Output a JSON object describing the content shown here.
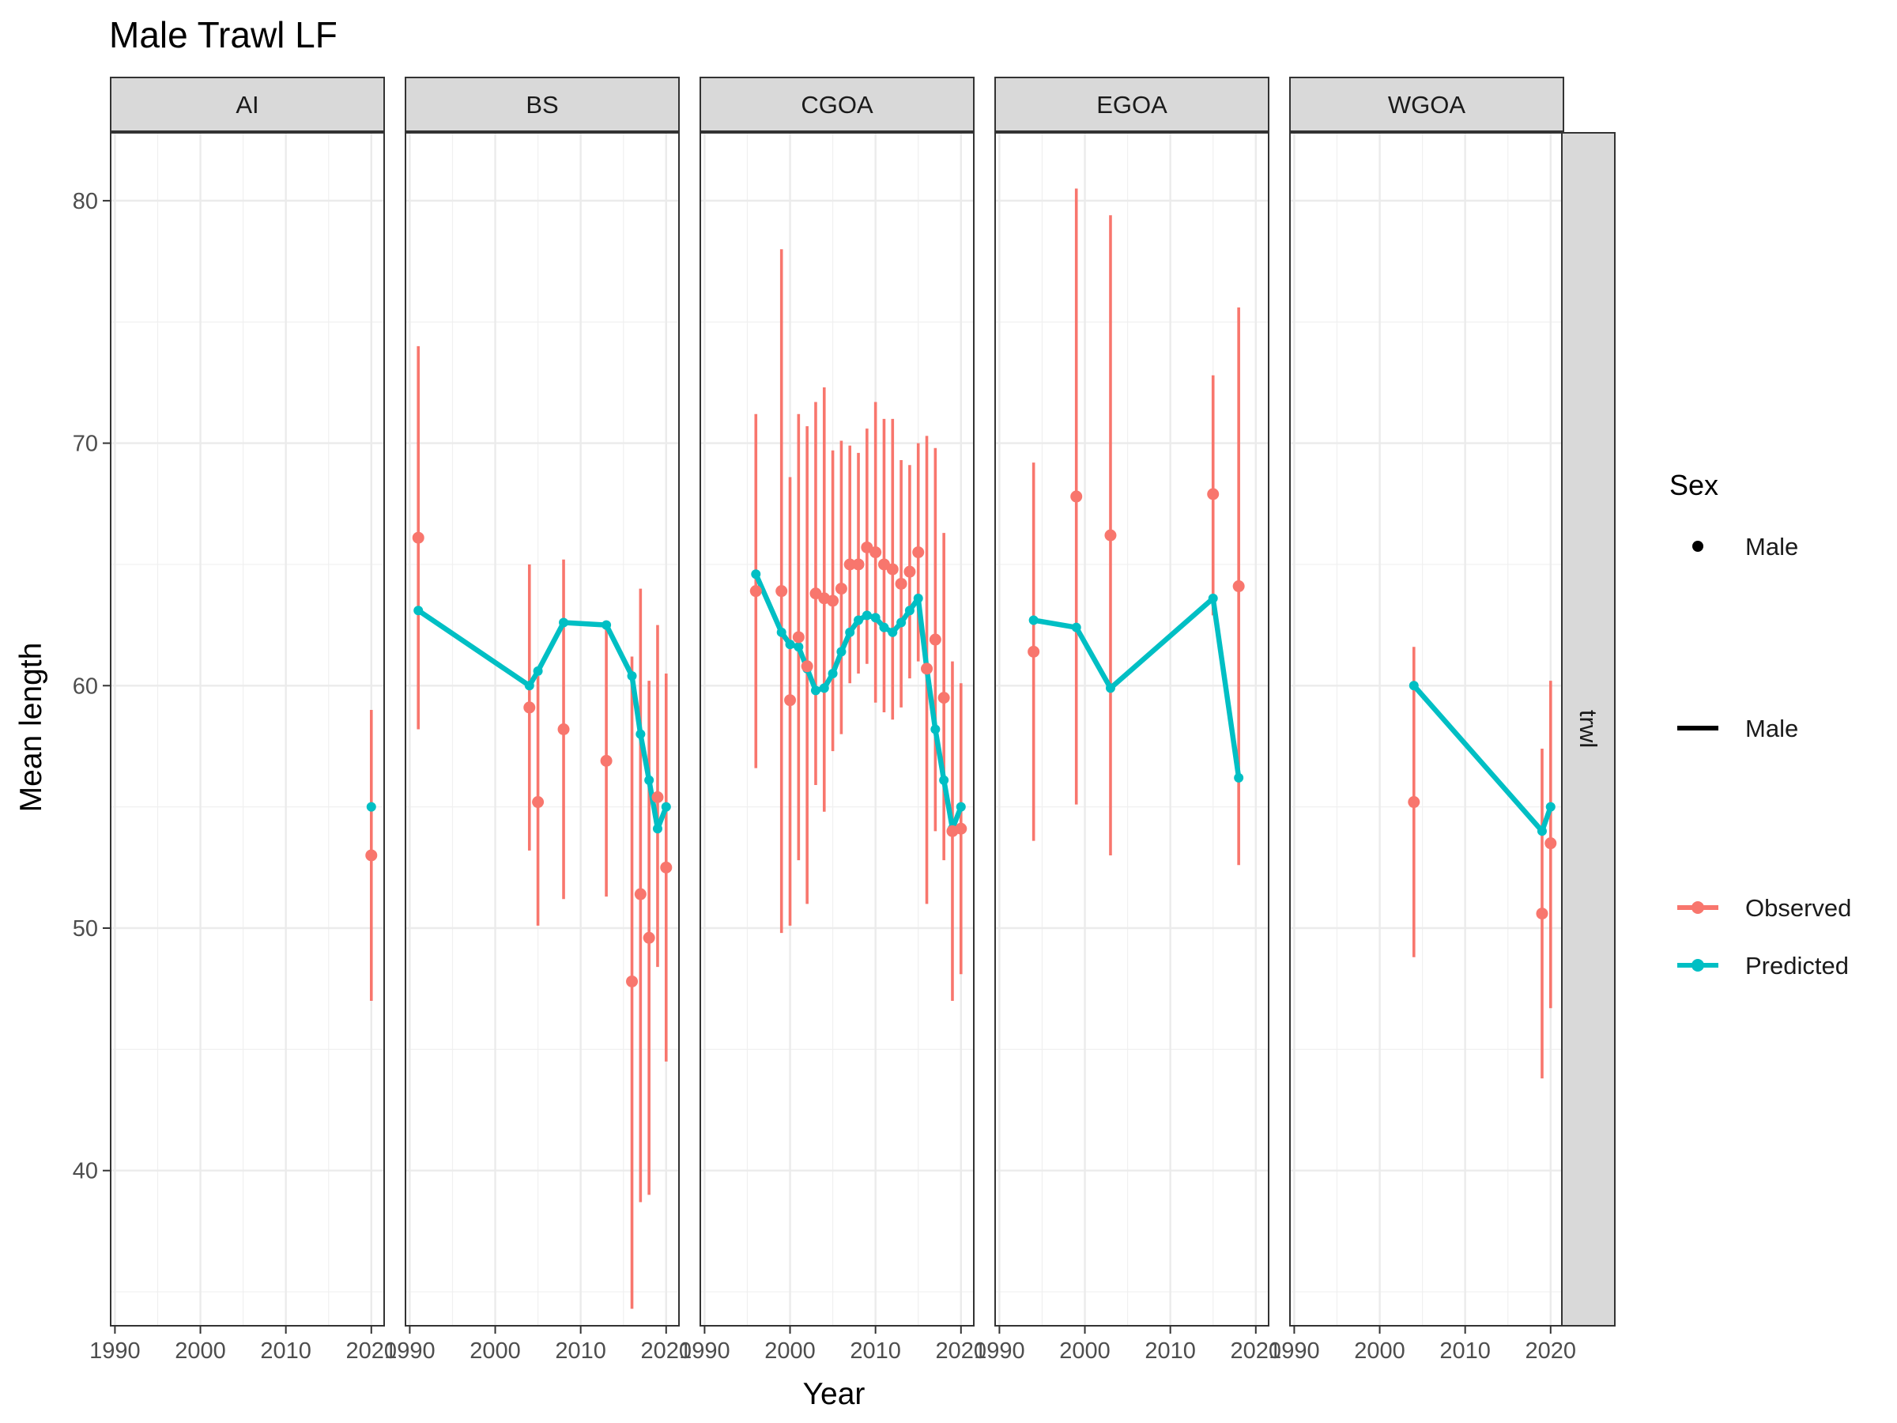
{
  "chart_data": {
    "type": "line",
    "title": "Male Trawl LF",
    "xlabel": "Year",
    "ylabel": "Mean length",
    "xlim": [
      1989.5,
      2021.5
    ],
    "ylim": [
      33.6,
      82.8
    ],
    "xticks": [
      1990,
      2000,
      2010,
      2020
    ],
    "xtick_labels": [
      "1990",
      "2000",
      "2010",
      "2020"
    ],
    "yticks": [
      40,
      50,
      60,
      70,
      80
    ],
    "ytick_labels": [
      "40",
      "50",
      "60",
      "70",
      "80"
    ],
    "grid": true,
    "row_strip": "trwl",
    "colors": {
      "observed": "#F8766D",
      "predicted": "#00BFC4"
    },
    "legend": {
      "placement": "right",
      "title": "Sex",
      "shape_label": "Male",
      "linetype_label": "Male",
      "observed_label": "Observed",
      "predicted_label": "Predicted"
    },
    "panels": [
      {
        "name": "AI",
        "observed": [
          [
            2020,
            53.0,
            47.0,
            59.0
          ]
        ],
        "predicted": [
          [
            2020,
            55.0
          ]
        ]
      },
      {
        "name": "BS",
        "observed": [
          [
            1991,
            66.1,
            58.2,
            74.0
          ],
          [
            2004,
            59.1,
            53.2,
            65.0
          ],
          [
            2005,
            55.2,
            50.1,
            60.4
          ],
          [
            2008,
            58.2,
            51.2,
            65.2
          ],
          [
            2013,
            56.9,
            51.3,
            62.4
          ],
          [
            2016,
            47.8,
            34.3,
            61.2
          ],
          [
            2017,
            51.4,
            38.7,
            64.0
          ],
          [
            2018,
            49.6,
            39.0,
            60.2
          ],
          [
            2019,
            55.4,
            48.4,
            62.5
          ],
          [
            2020,
            52.5,
            44.5,
            60.5
          ]
        ],
        "predicted": [
          [
            1991,
            63.1
          ],
          [
            2004,
            60.0
          ],
          [
            2005,
            60.6
          ],
          [
            2008,
            62.6
          ],
          [
            2013,
            62.5
          ],
          [
            2016,
            60.4
          ],
          [
            2017,
            58.0
          ],
          [
            2018,
            56.1
          ],
          [
            2019,
            54.1
          ],
          [
            2020,
            55.0
          ]
        ]
      },
      {
        "name": "CGOA",
        "observed": [
          [
            1996,
            63.9,
            56.6,
            71.2
          ],
          [
            1999,
            63.9,
            49.8,
            78.0
          ],
          [
            2000,
            59.4,
            50.1,
            68.6
          ],
          [
            2001,
            62.0,
            52.8,
            71.2
          ],
          [
            2002,
            60.8,
            51.0,
            70.7
          ],
          [
            2003,
            63.8,
            55.9,
            71.7
          ],
          [
            2004,
            63.6,
            54.8,
            72.3
          ],
          [
            2005,
            63.5,
            57.3,
            69.7
          ],
          [
            2006,
            64.0,
            58.0,
            70.1
          ],
          [
            2007,
            65.0,
            60.1,
            69.9
          ],
          [
            2008,
            65.0,
            60.5,
            69.6
          ],
          [
            2009,
            65.7,
            60.9,
            70.6
          ],
          [
            2010,
            65.5,
            59.3,
            71.7
          ],
          [
            2011,
            65.0,
            58.9,
            71.0
          ],
          [
            2012,
            64.8,
            58.6,
            71.0
          ],
          [
            2013,
            64.2,
            59.1,
            69.3
          ],
          [
            2014,
            64.7,
            60.3,
            69.1
          ],
          [
            2015,
            65.5,
            61.0,
            70.0
          ],
          [
            2016,
            60.7,
            51.0,
            70.3
          ],
          [
            2017,
            61.9,
            54.0,
            69.8
          ],
          [
            2018,
            59.5,
            52.8,
            66.3
          ],
          [
            2019,
            54.0,
            47.0,
            61.0
          ],
          [
            2020,
            54.1,
            48.1,
            60.1
          ]
        ],
        "predicted": [
          [
            1996,
            64.6
          ],
          [
            1999,
            62.2
          ],
          [
            2000,
            61.7
          ],
          [
            2001,
            61.6
          ],
          [
            2002,
            60.7
          ],
          [
            2003,
            59.8
          ],
          [
            2004,
            59.9
          ],
          [
            2005,
            60.5
          ],
          [
            2006,
            61.4
          ],
          [
            2007,
            62.2
          ],
          [
            2008,
            62.7
          ],
          [
            2009,
            62.9
          ],
          [
            2010,
            62.8
          ],
          [
            2011,
            62.4
          ],
          [
            2012,
            62.2
          ],
          [
            2013,
            62.6
          ],
          [
            2014,
            63.1
          ],
          [
            2015,
            63.6
          ],
          [
            2016,
            60.7
          ],
          [
            2017,
            58.2
          ],
          [
            2018,
            56.1
          ],
          [
            2019,
            54.1
          ],
          [
            2020,
            55.0
          ]
        ]
      },
      {
        "name": "EGOA",
        "observed": [
          [
            1994,
            61.4,
            53.6,
            69.2
          ],
          [
            1999,
            67.8,
            55.1,
            80.5
          ],
          [
            2003,
            66.2,
            53.0,
            79.4
          ],
          [
            2015,
            67.9,
            62.9,
            72.8
          ],
          [
            2018,
            64.1,
            52.6,
            75.6
          ]
        ],
        "predicted": [
          [
            1994,
            62.7
          ],
          [
            1999,
            62.4
          ],
          [
            2003,
            59.9
          ],
          [
            2015,
            63.6
          ],
          [
            2018,
            56.2
          ]
        ]
      },
      {
        "name": "WGOA",
        "observed": [
          [
            2004,
            55.2,
            48.8,
            61.6
          ],
          [
            2019,
            50.6,
            43.8,
            57.4
          ],
          [
            2020,
            53.5,
            46.7,
            60.2
          ]
        ],
        "predicted": [
          [
            2004,
            60.0
          ],
          [
            2019,
            54.0
          ],
          [
            2020,
            55.0
          ]
        ]
      }
    ]
  }
}
